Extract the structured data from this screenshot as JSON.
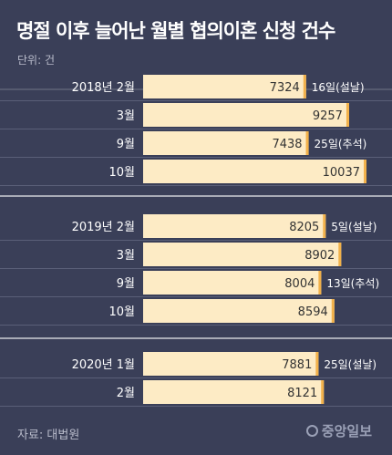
{
  "title": "명절 이후 늘어난 월별 협의이혼 신청 건수",
  "unit": "단위: 건",
  "source": "자료: 대법원",
  "logo_text": "중앙일보",
  "colors": {
    "background": "#3a3f58",
    "bar": "#fdebc5",
    "bar_edge": "#f2b14a",
    "divider": "#ffffff",
    "rule": "#5a5f78"
  },
  "chart_data": {
    "type": "bar",
    "orientation": "horizontal",
    "groups": [
      {
        "rows": [
          {
            "label": "2018년 2월",
            "value": 7324,
            "annotation": "16일(설날)"
          },
          {
            "label": "3월",
            "value": 9257,
            "annotation": ""
          },
          {
            "label": "9월",
            "value": 7438,
            "annotation": "25일(추석)"
          },
          {
            "label": "10월",
            "value": 10037,
            "annotation": ""
          }
        ]
      },
      {
        "rows": [
          {
            "label": "2019년 2월",
            "value": 8205,
            "annotation": "5일(설날)"
          },
          {
            "label": "3월",
            "value": 8902,
            "annotation": ""
          },
          {
            "label": "9월",
            "value": 8004,
            "annotation": "13일(추석)"
          },
          {
            "label": "10월",
            "value": 8594,
            "annotation": ""
          }
        ]
      },
      {
        "rows": [
          {
            "label": "2020년 1월",
            "value": 7881,
            "annotation": "25일(설날)"
          },
          {
            "label": "2월",
            "value": 8121,
            "annotation": ""
          }
        ]
      }
    ]
  }
}
